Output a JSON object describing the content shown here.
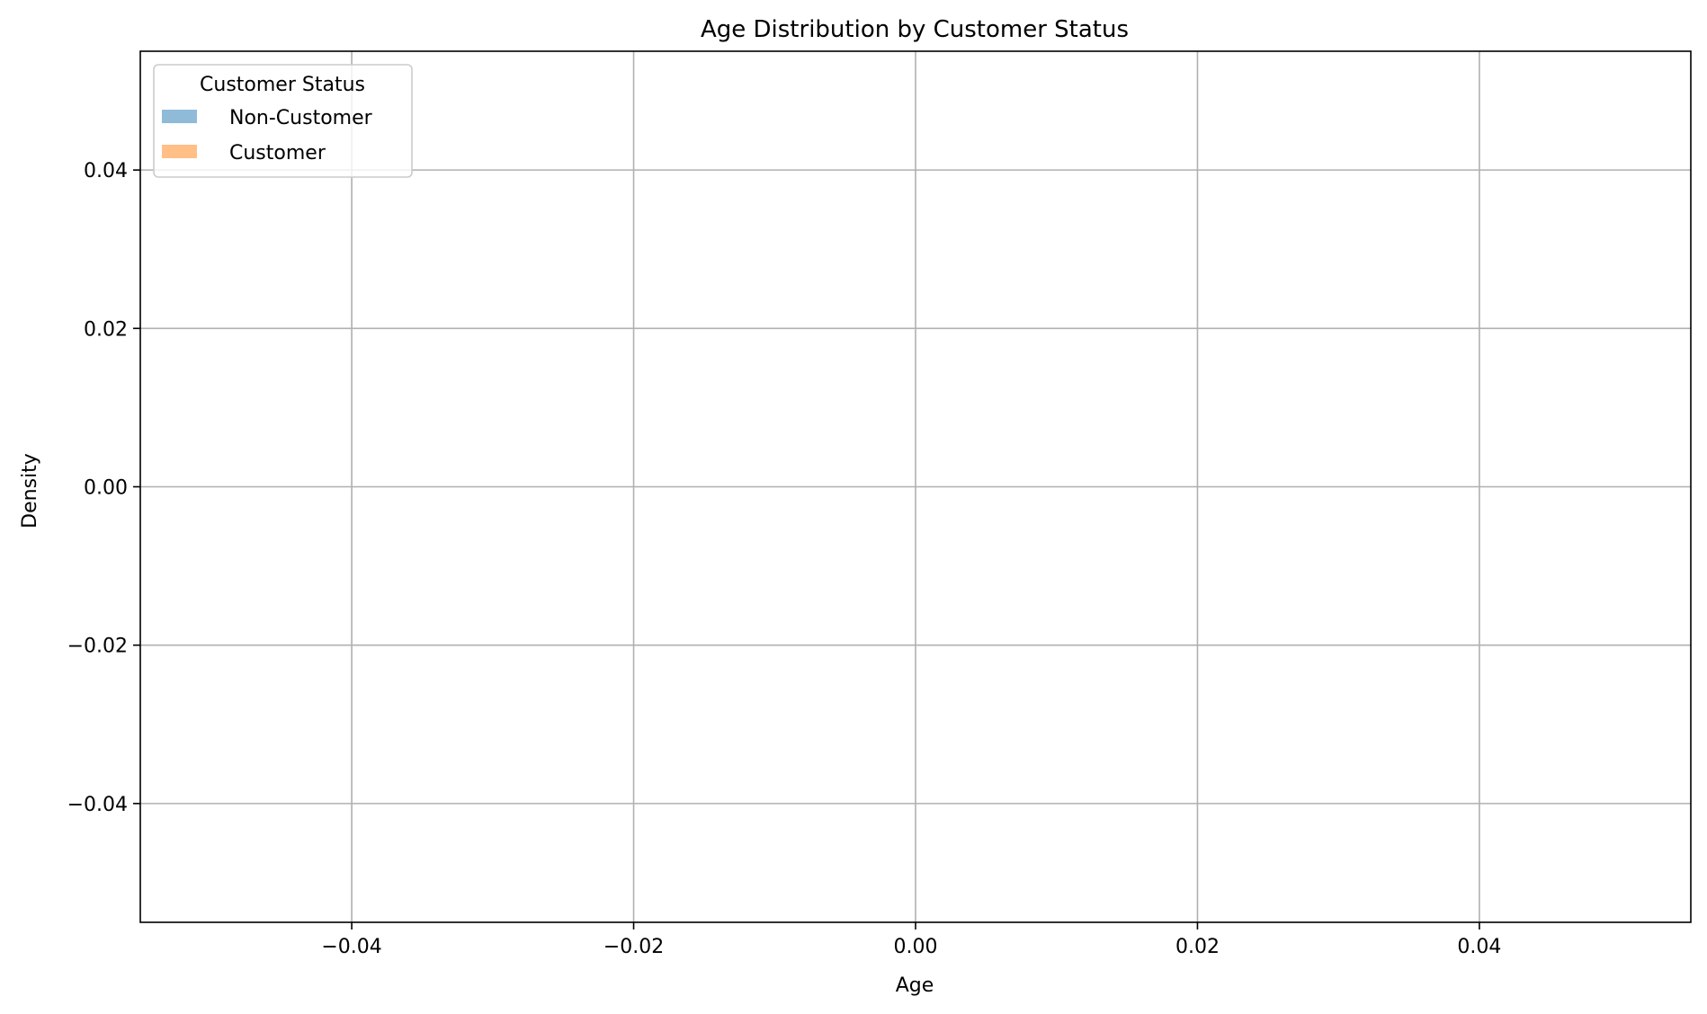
{
  "chart_data": {
    "type": "area",
    "title": "Age Distribution by Customer Status",
    "xlabel": "Age",
    "ylabel": "Density",
    "xlim": [
      -0.055,
      0.055
    ],
    "ylim": [
      -0.055,
      0.055
    ],
    "x_ticks": [
      -0.04,
      -0.02,
      0.0,
      0.02,
      0.04
    ],
    "x_tick_labels": [
      "−0.04",
      "−0.02",
      "0.00",
      "0.02",
      "0.04"
    ],
    "y_ticks": [
      -0.04,
      -0.02,
      0.0,
      0.02,
      0.04
    ],
    "y_tick_labels": [
      "−0.04",
      "−0.02",
      "0.00",
      "0.02",
      "0.04"
    ],
    "grid": true,
    "legend": {
      "title": "Customer Status",
      "placement": "top-left"
    },
    "series": [
      {
        "name": "Non-Customer",
        "color": "#1f77b4",
        "alpha": 0.5,
        "values": []
      },
      {
        "name": "Customer",
        "color": "#ff7f0e",
        "alpha": 0.5,
        "values": []
      }
    ]
  }
}
